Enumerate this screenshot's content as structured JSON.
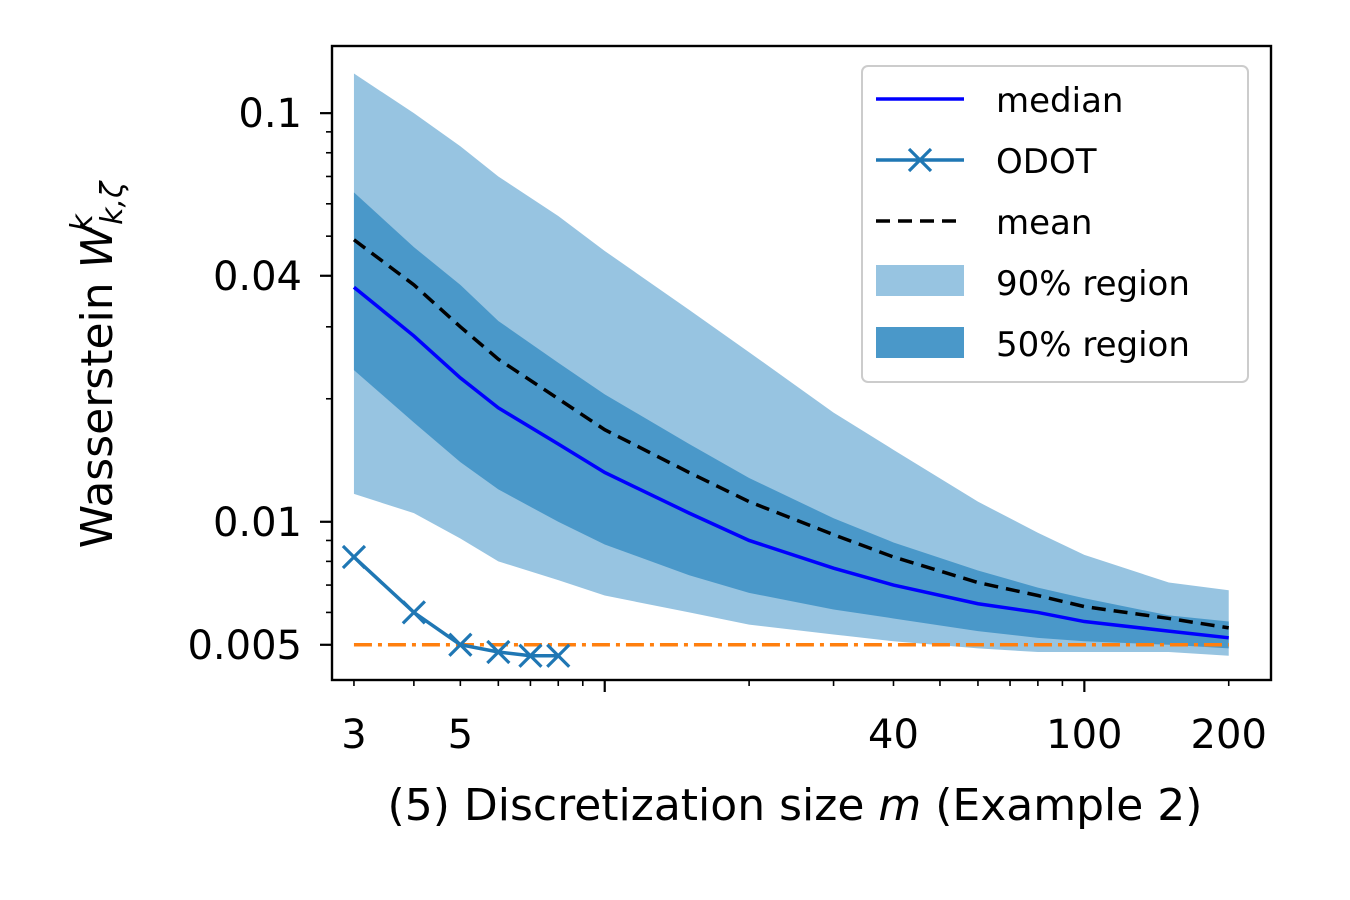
{
  "chart_data": {
    "type": "line",
    "xscale": "log",
    "yscale": "log",
    "xlim": [
      2.7,
      245
    ],
    "ylim": [
      0.0041,
      0.146
    ],
    "xticks": [
      3,
      5,
      40,
      100,
      200
    ],
    "xtick_labels": [
      "3",
      "5",
      "40",
      "100",
      "200"
    ],
    "yticks": [
      0.1,
      0.04,
      0.01,
      0.005
    ],
    "ytick_labels": [
      "0.1",
      "0.04",
      "0.01",
      "0.005"
    ],
    "xlabel": {
      "prefix": "(5) Discretization size ",
      "var": "m",
      "suffix": " (Example 2)"
    },
    "ylabel": {
      "word": "Wasserstein ",
      "symbol": "W",
      "sub": "k,ζ",
      "sup": "k"
    },
    "colors": {
      "median": "#0000ff",
      "odot": "#1f77b4",
      "mean": "#000000",
      "band90": "#97c4e1",
      "band50": "#4a98c9",
      "reference": "#ff7f0e"
    },
    "x": [
      3,
      4,
      5,
      6,
      8,
      10,
      15,
      20,
      30,
      40,
      60,
      80,
      100,
      150,
      200
    ],
    "series": [
      {
        "name": "median",
        "values": [
          0.0375,
          0.0285,
          0.0225,
          0.019,
          0.0155,
          0.0132,
          0.0105,
          0.009,
          0.0077,
          0.007,
          0.0063,
          0.006,
          0.0057,
          0.0054,
          0.0052
        ]
      },
      {
        "name": "mean",
        "values": [
          0.049,
          0.038,
          0.03,
          0.025,
          0.02,
          0.0168,
          0.0132,
          0.0112,
          0.0093,
          0.0082,
          0.0071,
          0.0066,
          0.0062,
          0.0058,
          0.0055
        ]
      },
      {
        "name": "ODOT",
        "x": [
          3,
          4,
          5,
          6,
          7,
          8
        ],
        "values": [
          0.0082,
          0.006,
          0.005,
          0.0048,
          0.0047,
          0.0047
        ]
      }
    ],
    "band90": {
      "lower": [
        0.0117,
        0.0105,
        0.0091,
        0.008,
        0.0072,
        0.0066,
        0.006,
        0.0056,
        0.0053,
        0.0051,
        0.0049,
        0.0048,
        0.0048,
        0.0048,
        0.0047
      ],
      "upper": [
        0.125,
        0.1,
        0.083,
        0.07,
        0.056,
        0.046,
        0.033,
        0.026,
        0.0185,
        0.015,
        0.0112,
        0.0094,
        0.0083,
        0.0071,
        0.0068
      ]
    },
    "band50": {
      "lower": [
        0.0235,
        0.0175,
        0.014,
        0.012,
        0.01,
        0.0088,
        0.0074,
        0.0067,
        0.0061,
        0.0058,
        0.0054,
        0.0052,
        0.0051,
        0.005,
        0.0049
      ],
      "upper": [
        0.064,
        0.047,
        0.038,
        0.031,
        0.0245,
        0.0205,
        0.0155,
        0.0128,
        0.0102,
        0.0089,
        0.0076,
        0.0069,
        0.0065,
        0.0059,
        0.0057
      ]
    },
    "reference_line": {
      "style": "dashdot",
      "value": 0.005,
      "x_range": [
        3,
        200
      ]
    },
    "legend": {
      "position": "top-right",
      "entries": [
        "median",
        "ODOT",
        "mean",
        "90% region",
        "50% region"
      ]
    }
  }
}
